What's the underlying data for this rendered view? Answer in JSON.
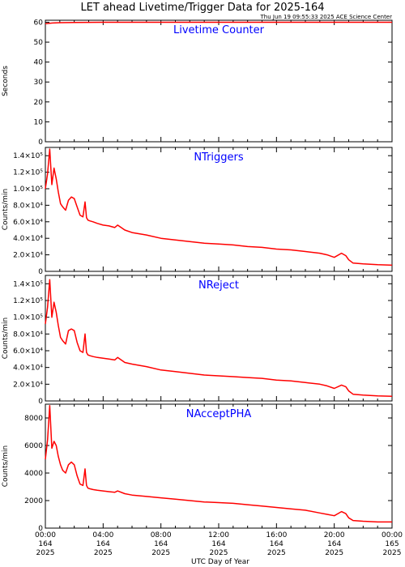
{
  "title": "LET ahead Livetime/Trigger Data for 2025-164",
  "timestamp": "Thu Jun 19 09:55:33 2025 ACE Science Center",
  "xlabel": "UTC Day of Year",
  "colors": {
    "series": "#ff0000",
    "panel_title": "#0000ff",
    "axes": "#000000"
  },
  "x_ticks": [
    {
      "t": 0,
      "lines": [
        "00:00",
        "164",
        "2025"
      ]
    },
    {
      "t": 4,
      "lines": [
        "04:00",
        "164",
        "2025"
      ]
    },
    {
      "t": 8,
      "lines": [
        "08:00",
        "164",
        "2025"
      ]
    },
    {
      "t": 12,
      "lines": [
        "12:00",
        "164",
        "2025"
      ]
    },
    {
      "t": 16,
      "lines": [
        "16:00",
        "164",
        "2025"
      ]
    },
    {
      "t": 20,
      "lines": [
        "20:00",
        "164",
        "2025"
      ]
    },
    {
      "t": 24,
      "lines": [
        "00:00",
        "165",
        "2025"
      ]
    }
  ],
  "chart_data": [
    {
      "type": "line",
      "title": "Livetime Counter",
      "ylabel": "Seconds",
      "xlim": [
        0,
        24
      ],
      "ylim": [
        0,
        61
      ],
      "yticks": [
        {
          "v": 0,
          "label": "0"
        },
        {
          "v": 10,
          "label": "10"
        },
        {
          "v": 20,
          "label": "20"
        },
        {
          "v": 30,
          "label": "30"
        },
        {
          "v": 40,
          "label": "40"
        },
        {
          "v": 50,
          "label": "50"
        },
        {
          "v": 60,
          "label": "60"
        }
      ],
      "series": [
        {
          "x": [
            0,
            0.5,
            1,
            2,
            4,
            8,
            12,
            16,
            20,
            24
          ],
          "y": [
            59.3,
            59.6,
            59.8,
            59.9,
            60.0,
            60.0,
            60.0,
            60.0,
            60.0,
            60.0
          ]
        }
      ]
    },
    {
      "type": "line",
      "title": "NTriggers",
      "ylabel": "Counts/min",
      "xlim": [
        0,
        24
      ],
      "ylim": [
        0,
        150000
      ],
      "yticks": [
        {
          "v": 0,
          "label": "0"
        },
        {
          "v": 20000,
          "label": "2.0×10⁴"
        },
        {
          "v": 40000,
          "label": "4.0×10⁴"
        },
        {
          "v": 60000,
          "label": "6.0×10⁴"
        },
        {
          "v": 80000,
          "label": "8.0×10⁴"
        },
        {
          "v": 100000,
          "label": "1.0×10⁵"
        },
        {
          "v": 120000,
          "label": "1.2×10⁵"
        },
        {
          "v": 140000,
          "label": "1.4×10⁵"
        }
      ],
      "series": [
        {
          "x": [
            0,
            0.15,
            0.3,
            0.45,
            0.6,
            0.75,
            0.9,
            1.05,
            1.2,
            1.4,
            1.6,
            1.8,
            2.0,
            2.2,
            2.4,
            2.6,
            2.75,
            2.85,
            2.95,
            3.1,
            3.3,
            3.6,
            4.0,
            4.4,
            4.8,
            5.0,
            5.5,
            6.0,
            7.0,
            8.0,
            9.0,
            10.0,
            11.0,
            12.0,
            13.0,
            14.0,
            15.0,
            16.0,
            17.0,
            18.0,
            19.0,
            19.5,
            20.0,
            20.5,
            20.8,
            21.0,
            21.3,
            22.0,
            23.0,
            24.0
          ],
          "y": [
            100000,
            118000,
            148000,
            105000,
            125000,
            112000,
            96000,
            82000,
            78000,
            74000,
            86000,
            90000,
            88000,
            78000,
            68000,
            66000,
            84000,
            65000,
            62000,
            61000,
            60000,
            58000,
            56000,
            55000,
            53000,
            56000,
            50000,
            47000,
            44000,
            40000,
            38000,
            36000,
            34000,
            33000,
            32000,
            30000,
            29000,
            27000,
            26000,
            24000,
            22000,
            20000,
            17000,
            22000,
            19000,
            14000,
            10000,
            9000,
            8000,
            7500
          ]
        }
      ]
    },
    {
      "type": "line",
      "title": "NReject",
      "ylabel": "Counts/min",
      "xlim": [
        0,
        24
      ],
      "ylim": [
        0,
        150000
      ],
      "yticks": [
        {
          "v": 0,
          "label": "0"
        },
        {
          "v": 20000,
          "label": "2.0×10⁴"
        },
        {
          "v": 40000,
          "label": "4.0×10⁴"
        },
        {
          "v": 60000,
          "label": "6.0×10⁴"
        },
        {
          "v": 80000,
          "label": "8.0×10⁴"
        },
        {
          "v": 100000,
          "label": "1.0×10⁵"
        },
        {
          "v": 120000,
          "label": "1.2×10⁵"
        },
        {
          "v": 140000,
          "label": "1.4×10⁵"
        }
      ],
      "series": [
        {
          "x": [
            0,
            0.15,
            0.3,
            0.45,
            0.6,
            0.75,
            0.9,
            1.05,
            1.2,
            1.4,
            1.6,
            1.8,
            2.0,
            2.2,
            2.4,
            2.6,
            2.75,
            2.85,
            2.95,
            3.1,
            3.3,
            3.6,
            4.0,
            4.4,
            4.8,
            5.0,
            5.5,
            6.0,
            7.0,
            8.0,
            9.0,
            10.0,
            11.0,
            12.0,
            13.0,
            14.0,
            15.0,
            16.0,
            17.0,
            18.0,
            19.0,
            19.5,
            20.0,
            20.5,
            20.8,
            21.0,
            21.3,
            22.0,
            23.0,
            24.0
          ],
          "y": [
            92000,
            112000,
            145000,
            100000,
            118000,
            106000,
            90000,
            76000,
            72000,
            68000,
            84000,
            86000,
            84000,
            70000,
            60000,
            58000,
            80000,
            58000,
            55000,
            54000,
            53000,
            52000,
            51000,
            50000,
            49000,
            52000,
            46000,
            44000,
            41000,
            37000,
            35000,
            33000,
            31000,
            30000,
            29000,
            28000,
            27000,
            25000,
            24000,
            22000,
            20000,
            18000,
            15000,
            19000,
            17000,
            12000,
            8000,
            7000,
            6000,
            5500
          ]
        }
      ]
    },
    {
      "type": "line",
      "title": "NAcceptPHA",
      "ylabel": "Counts/min",
      "xlim": [
        0,
        24
      ],
      "ylim": [
        0,
        9000
      ],
      "yticks": [
        {
          "v": 0,
          "label": "0"
        },
        {
          "v": 2000,
          "label": "2000"
        },
        {
          "v": 4000,
          "label": "4000"
        },
        {
          "v": 6000,
          "label": "6000"
        },
        {
          "v": 8000,
          "label": "8000"
        }
      ],
      "series": [
        {
          "x": [
            0,
            0.15,
            0.3,
            0.45,
            0.6,
            0.75,
            0.9,
            1.05,
            1.2,
            1.4,
            1.6,
            1.8,
            2.0,
            2.2,
            2.4,
            2.6,
            2.75,
            2.85,
            2.95,
            3.1,
            3.3,
            3.6,
            4.0,
            4.4,
            4.8,
            5.0,
            5.5,
            6.0,
            7.0,
            8.0,
            9.0,
            10.0,
            11.0,
            12.0,
            13.0,
            14.0,
            15.0,
            16.0,
            17.0,
            18.0,
            19.0,
            19.5,
            20.0,
            20.5,
            20.8,
            21.0,
            21.3,
            22.0,
            23.0,
            24.0
          ],
          "y": [
            5000,
            6400,
            8900,
            5800,
            6300,
            6000,
            5200,
            4600,
            4200,
            4000,
            4600,
            4800,
            4600,
            3800,
            3200,
            3100,
            4300,
            3100,
            2900,
            2850,
            2800,
            2750,
            2700,
            2650,
            2600,
            2700,
            2500,
            2400,
            2300,
            2200,
            2100,
            2000,
            1900,
            1850,
            1800,
            1700,
            1600,
            1500,
            1400,
            1300,
            1100,
            1000,
            900,
            1200,
            1050,
            750,
            550,
            500,
            450,
            450
          ]
        }
      ]
    }
  ]
}
